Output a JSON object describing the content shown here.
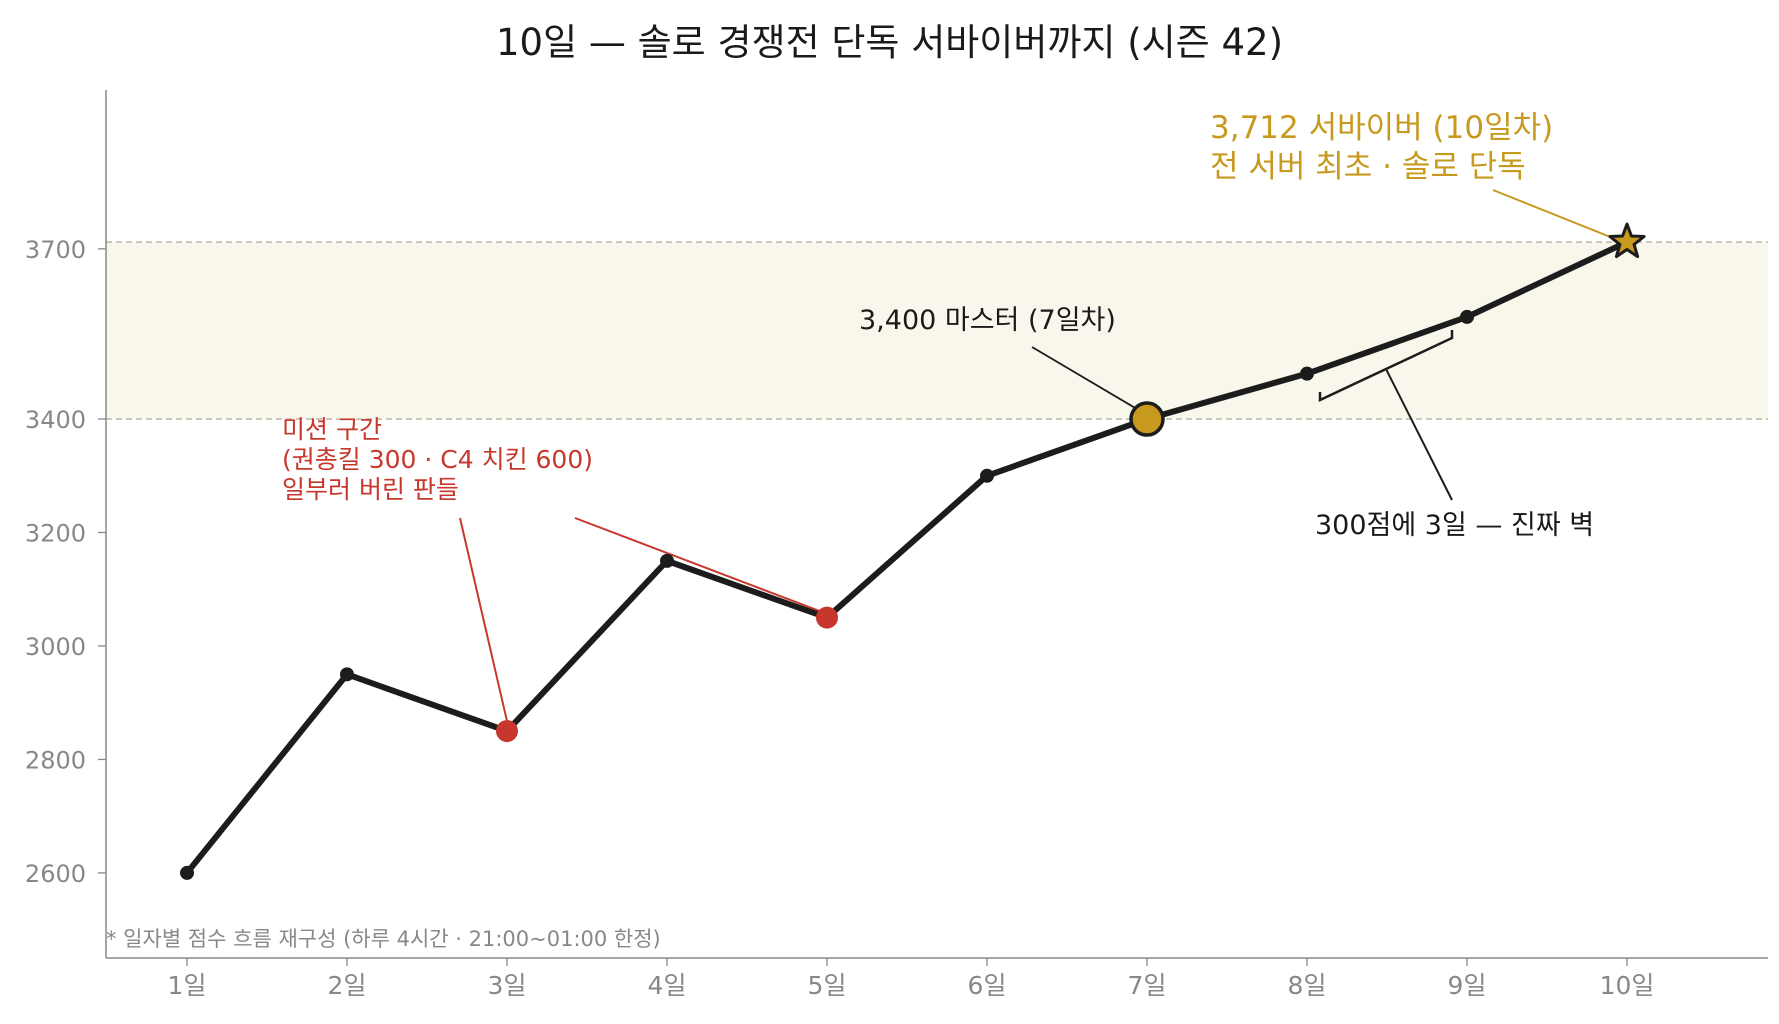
{
  "chart_data": {
    "type": "line",
    "title": "10일 — 솔로 경쟁전 단독 서바이버까지 (시즌 42)",
    "xlabel": "",
    "ylabel": "",
    "categories": [
      "1일",
      "2일",
      "3일",
      "4일",
      "5일",
      "6일",
      "7일",
      "8일",
      "9일",
      "10일"
    ],
    "series": [
      {
        "values": [
          2600,
          2950,
          2850,
          3150,
          3050,
          3300,
          3400,
          3480,
          3580,
          3712
        ]
      }
    ],
    "ylim": [
      2450,
      3980
    ],
    "yticks": [
      2600,
      2800,
      3000,
      3200,
      3400,
      3700
    ],
    "grid": false,
    "highlight_band": {
      "from": 3400,
      "to": 3712,
      "color": "#f9f7ec"
    },
    "reference_lines": [
      3400,
      3712
    ],
    "highlight_points": {
      "mission_days_index": [
        2,
        4
      ],
      "master_index": 6,
      "survivor_index": 9
    },
    "annotations": {
      "mission": [
        "미션 구간",
        "(권총킬 300 · C4 치킨 600)",
        "일부러 버린 판들"
      ],
      "master": "3,400 마스터 (7일차)",
      "wall": "300점에 3일 — 진짜 벽",
      "survivor": [
        "3,712 서바이버 (10일차)",
        "전 서버 최초 · 솔로 단독"
      ]
    },
    "footnote": "* 일자별 점수 흐름 재구성 (하루 4시간 · 21:00~01:00 한정)",
    "colors": {
      "line": "#1c1c1c",
      "mission": "#c8372d",
      "master": "#c79a1f",
      "survivor": "#c79a1f",
      "axis": "#888888",
      "tick_label": "#888888",
      "ref_line": "#b5b29c"
    }
  }
}
